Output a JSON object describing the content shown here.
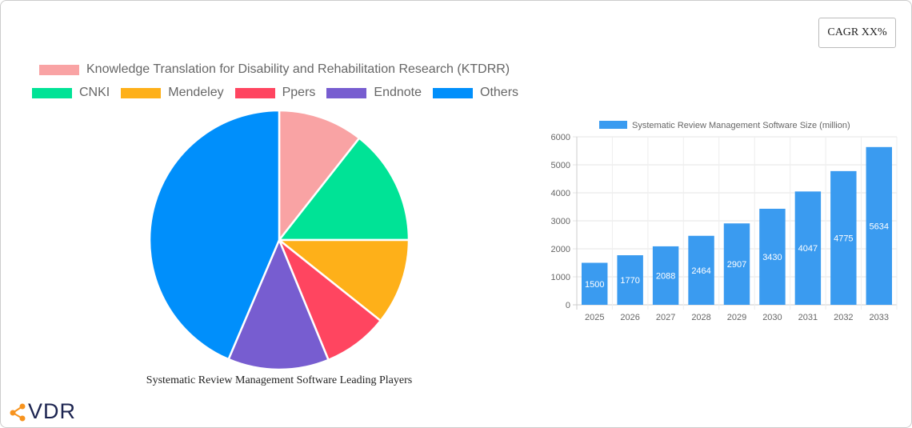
{
  "cagr_label": "CAGR XX%",
  "chart_data": [
    {
      "type": "pie",
      "title": "Systematic Review Management Software Leading Players",
      "legend_position": "top",
      "slices": [
        {
          "name": "Knowledge Translation for Disability and Rehabilitation Research (KTDRR)",
          "value": 10.6,
          "color": "#f9a3a4"
        },
        {
          "name": "CNKI",
          "value": 14.4,
          "color": "#00e396"
        },
        {
          "name": "Mendeley",
          "value": 10.7,
          "color": "#feb019"
        },
        {
          "name": "Ppers",
          "value": 8.1,
          "color": "#ff4560"
        },
        {
          "name": "Endnote",
          "value": 12.6,
          "color": "#775dd0"
        },
        {
          "name": "Others",
          "value": 43.6,
          "color": "#008ffb"
        }
      ]
    },
    {
      "type": "bar",
      "legend_position": "top",
      "series": [
        {
          "name": "Systematic Review Management Software Size (million)",
          "color": "#3a9bf0",
          "values": [
            1500,
            1770,
            2088,
            2464,
            2907,
            3430,
            4047,
            4775,
            5634
          ]
        }
      ],
      "categories": [
        "2025",
        "2026",
        "2027",
        "2028",
        "2029",
        "2030",
        "2031",
        "2032",
        "2033"
      ],
      "ylim": [
        0,
        6000
      ],
      "yticks": [
        "0",
        "1000",
        "2000",
        "3000",
        "4000",
        "5000",
        "6000"
      ],
      "grid": true
    }
  ],
  "logo": {
    "text": "VDR",
    "color": "#f7931e"
  }
}
